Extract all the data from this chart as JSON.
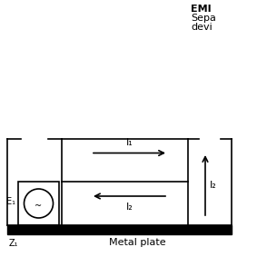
{
  "bg_color": "#ffffff",
  "line_color": "#000000",
  "title_text_lines": [
    "EMI",
    "Sepa",
    "devi"
  ],
  "label_I1": "I₁",
  "label_I2_horiz": "I₂",
  "label_I2_vert": "I₂",
  "label_E1": "E₁",
  "label_Z1": "Z₁",
  "label_metal": "Metal plate",
  "figsize": [
    2.83,
    2.83
  ],
  "dpi": 100
}
